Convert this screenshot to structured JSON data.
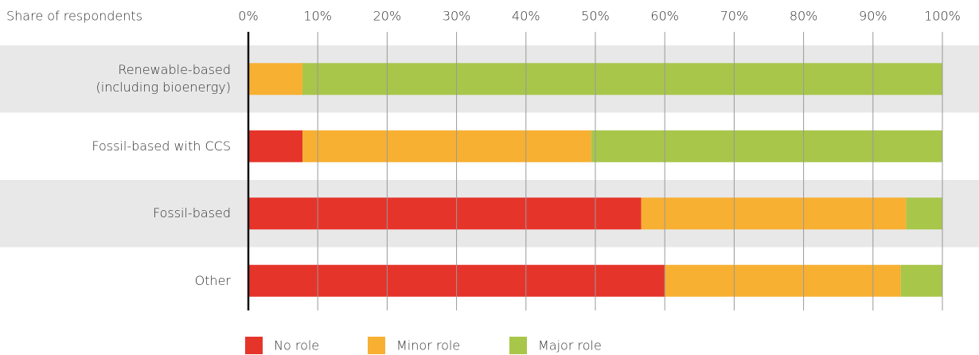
{
  "chart_data": {
    "type": "stacked-bar-horizontal",
    "title": "Share of respondents",
    "categories": [
      "Renewable-based\n(including bioenergy)",
      "Fossil-based with CCS",
      "Fossil-based",
      "Other"
    ],
    "series": [
      {
        "name": "No role",
        "color": "#e5352b",
        "values": [
          0,
          7.8,
          56.6,
          60
        ]
      },
      {
        "name": "Minor role",
        "color": "#f7b032",
        "values": [
          7.8,
          41.6,
          38.2,
          34
        ]
      },
      {
        "name": "Major role",
        "color": "#a8c64a",
        "values": [
          92.2,
          50.6,
          5.2,
          6
        ]
      }
    ],
    "xlim": [
      0,
      100
    ],
    "xticks": [
      {
        "value": 0,
        "label": "0%"
      },
      {
        "value": 10,
        "label": "10%"
      },
      {
        "value": 20,
        "label": "20%"
      },
      {
        "value": 30,
        "label": "30%"
      },
      {
        "value": 40,
        "label": "40%"
      },
      {
        "value": 50,
        "label": "50%"
      },
      {
        "value": 60,
        "label": "60%"
      },
      {
        "value": 70,
        "label": "70%"
      },
      {
        "value": 80,
        "label": "80%"
      },
      {
        "value": 90,
        "label": "90%"
      },
      {
        "value": 100,
        "label": "100%"
      }
    ],
    "grid": true
  }
}
